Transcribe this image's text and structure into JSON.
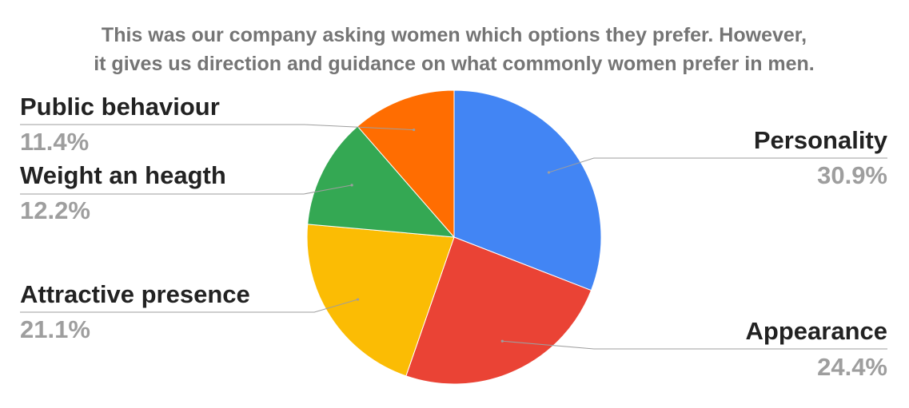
{
  "title": {
    "line1": "This was our company asking women which options they prefer. However,",
    "line2": "it gives us direction and guidance on what commonly women prefer in men."
  },
  "chart_data": {
    "type": "pie",
    "title": "This was our company asking women which options they prefer. However, it gives us direction and guidance on what commonly women prefer in men.",
    "categories": [
      "Personality",
      "Appearance",
      "Attractive presence",
      "Weight an heagth",
      "Public behaviour"
    ],
    "values": [
      30.9,
      24.4,
      21.1,
      12.2,
      11.4
    ],
    "value_labels": [
      "30.9%",
      "24.4%",
      "21.1%",
      "12.2%",
      "11.4%"
    ],
    "colors": [
      "#4285f4",
      "#ea4335",
      "#fbbc04",
      "#34a853",
      "#ff6d01"
    ],
    "legend": "none",
    "label_placement": "outside-with-leader-lines"
  }
}
